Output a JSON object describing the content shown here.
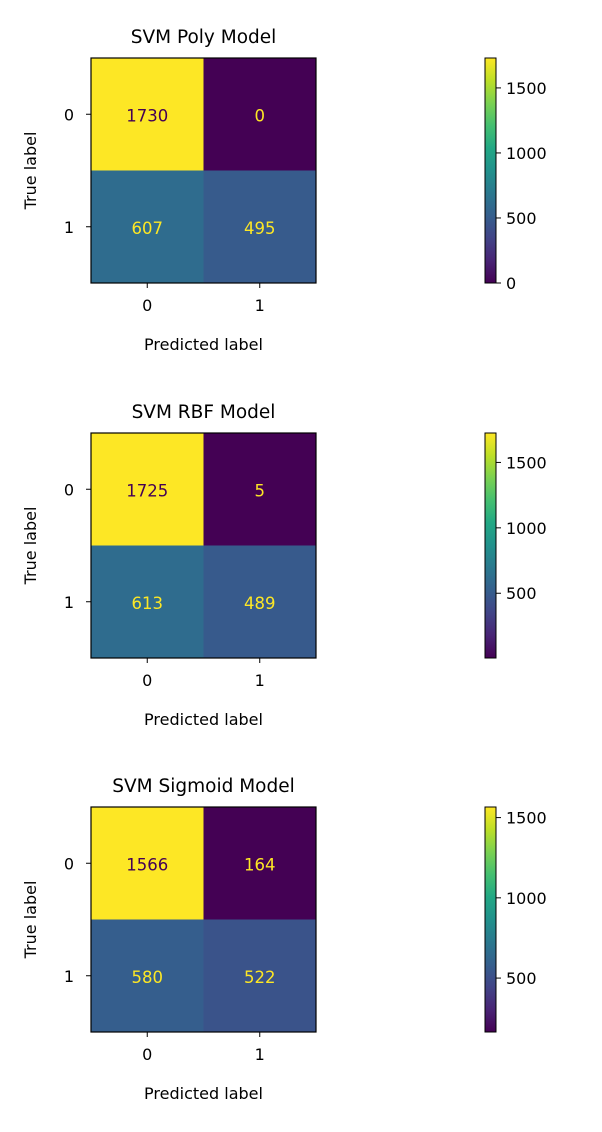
{
  "chart_data": [
    {
      "type": "heatmap",
      "title": "SVM Poly Model",
      "xlabel": "Predicted label",
      "ylabel": "True label",
      "x_categories": [
        "0",
        "1"
      ],
      "y_categories": [
        "0",
        "1"
      ],
      "matrix": [
        [
          1730,
          0
        ],
        [
          607,
          495
        ]
      ],
      "colorbar": {
        "min": 0,
        "max": 1730,
        "ticks": [
          0,
          500,
          1000,
          1500
        ]
      },
      "colormap": "viridis"
    },
    {
      "type": "heatmap",
      "title": "SVM RBF Model",
      "xlabel": "Predicted label",
      "ylabel": "True label",
      "x_categories": [
        "0",
        "1"
      ],
      "y_categories": [
        "0",
        "1"
      ],
      "matrix": [
        [
          1725,
          5
        ],
        [
          613,
          489
        ]
      ],
      "colorbar": {
        "min": 5,
        "max": 1725,
        "ticks": [
          500,
          1000,
          1500
        ]
      },
      "colormap": "viridis"
    },
    {
      "type": "heatmap",
      "title": "SVM Sigmoid Model",
      "xlabel": "Predicted label",
      "ylabel": "True label",
      "x_categories": [
        "0",
        "1"
      ],
      "y_categories": [
        "0",
        "1"
      ],
      "matrix": [
        [
          1566,
          164
        ],
        [
          580,
          522
        ]
      ],
      "colorbar": {
        "min": 164,
        "max": 1566,
        "ticks": [
          500,
          1000,
          1500
        ]
      },
      "colormap": "viridis"
    }
  ]
}
